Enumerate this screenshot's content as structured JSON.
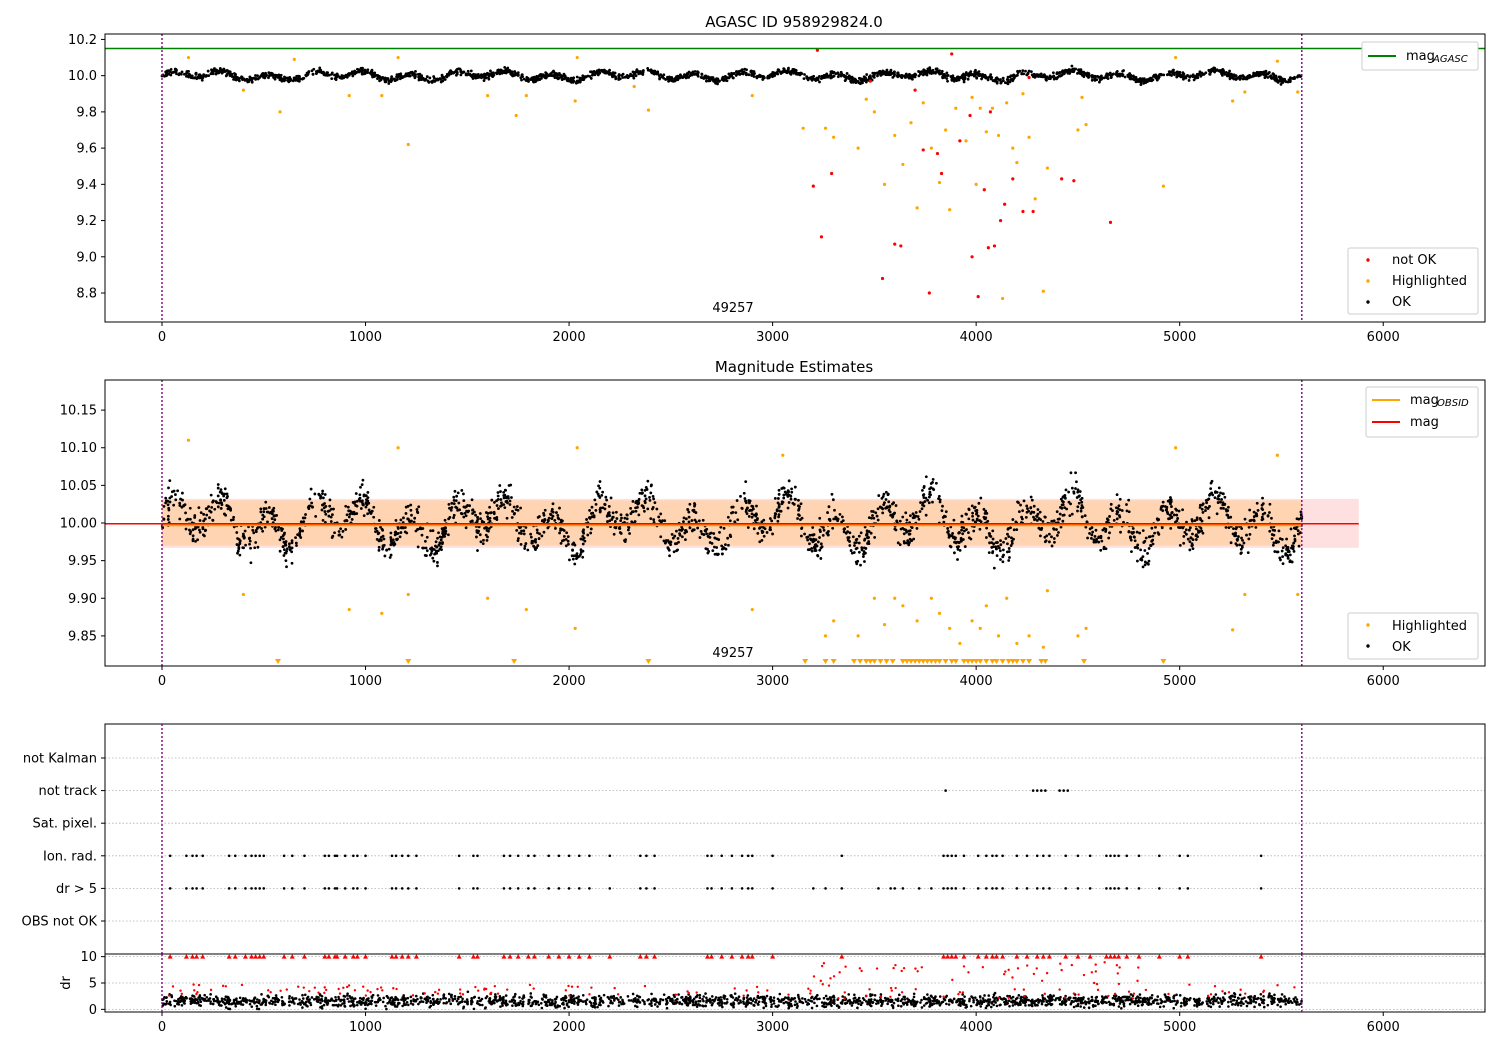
{
  "chart_data": [
    {
      "type": "scatter",
      "title": "AGASC ID 958929824.0",
      "xlim": [
        -280,
        6500
      ],
      "ylim": [
        8.64,
        10.23
      ],
      "xticks": [
        0,
        1000,
        2000,
        3000,
        4000,
        5000,
        6000
      ],
      "yticks": [
        8.8,
        9.0,
        9.2,
        9.4,
        9.6,
        9.8,
        10.0,
        10.2
      ],
      "obs_label": "49257",
      "obs_label_x": 2800,
      "obs_boundaries": [
        0,
        5600
      ],
      "agasc_mag": 10.15,
      "legend_top": [
        {
          "label": "mag",
          "sub": "AGASC",
          "color": "#008000"
        }
      ],
      "legend_bottom": [
        {
          "label": "not OK",
          "color": "#ff0000"
        },
        {
          "label": "Highlighted",
          "color": "#ffa500"
        },
        {
          "label": "OK",
          "color": "#000000"
        }
      ],
      "highlighted_points": [
        [
          130,
          10.1
        ],
        [
          400,
          9.92
        ],
        [
          580,
          9.8
        ],
        [
          650,
          10.09
        ],
        [
          920,
          9.89
        ],
        [
          1080,
          9.89
        ],
        [
          1160,
          10.1
        ],
        [
          1210,
          9.62
        ],
        [
          1600,
          9.89
        ],
        [
          1740,
          9.78
        ],
        [
          1790,
          9.89
        ],
        [
          2030,
          9.86
        ],
        [
          2040,
          10.1
        ],
        [
          2390,
          9.81
        ],
        [
          2320,
          9.94
        ],
        [
          2900,
          9.89
        ],
        [
          3150,
          9.71
        ],
        [
          3260,
          9.71
        ],
        [
          3300,
          9.66
        ],
        [
          3420,
          9.6
        ],
        [
          3460,
          9.87
        ],
        [
          3500,
          9.8
        ],
        [
          3550,
          9.4
        ],
        [
          3600,
          9.67
        ],
        [
          3640,
          9.51
        ],
        [
          3680,
          9.74
        ],
        [
          3710,
          9.27
        ],
        [
          3740,
          9.85
        ],
        [
          3780,
          9.6
        ],
        [
          3820,
          9.41
        ],
        [
          3850,
          9.7
        ],
        [
          3870,
          9.26
        ],
        [
          3900,
          9.82
        ],
        [
          3950,
          9.64
        ],
        [
          3980,
          9.88
        ],
        [
          4000,
          9.4
        ],
        [
          4020,
          9.82
        ],
        [
          4050,
          9.69
        ],
        [
          4080,
          9.82
        ],
        [
          4110,
          9.67
        ],
        [
          4130,
          8.77
        ],
        [
          4150,
          9.85
        ],
        [
          4180,
          9.6
        ],
        [
          4200,
          9.52
        ],
        [
          4230,
          9.9
        ],
        [
          4260,
          9.66
        ],
        [
          4290,
          9.32
        ],
        [
          4330,
          8.81
        ],
        [
          4350,
          9.49
        ],
        [
          4500,
          9.7
        ],
        [
          4520,
          9.88
        ],
        [
          4540,
          9.73
        ],
        [
          4920,
          9.39
        ],
        [
          4980,
          10.1
        ],
        [
          5260,
          9.86
        ],
        [
          5320,
          9.91
        ],
        [
          5480,
          10.08
        ],
        [
          5580,
          9.91
        ]
      ],
      "not_ok_points": [
        [
          3220,
          10.14
        ],
        [
          3200,
          9.39
        ],
        [
          3240,
          9.11
        ],
        [
          3290,
          9.46
        ],
        [
          3540,
          8.88
        ],
        [
          3600,
          9.07
        ],
        [
          3630,
          9.06
        ],
        [
          3740,
          9.59
        ],
        [
          3770,
          8.8
        ],
        [
          3810,
          9.57
        ],
        [
          3830,
          9.46
        ],
        [
          3880,
          10.12
        ],
        [
          3920,
          9.64
        ],
        [
          3980,
          9.0
        ],
        [
          4010,
          8.78
        ],
        [
          4040,
          9.37
        ],
        [
          4060,
          9.05
        ],
        [
          4090,
          9.06
        ],
        [
          4120,
          9.2
        ],
        [
          4140,
          9.29
        ],
        [
          4180,
          9.43
        ],
        [
          4230,
          9.25
        ],
        [
          4260,
          9.99
        ],
        [
          4280,
          9.25
        ],
        [
          4420,
          9.43
        ],
        [
          4480,
          9.42
        ],
        [
          4660,
          9.19
        ],
        [
          3970,
          9.78
        ],
        [
          4070,
          9.8
        ],
        [
          3480,
          9.97
        ],
        [
          3700,
          9.92
        ]
      ],
      "ok_baseline": 10.0,
      "ok_spread": 0.03,
      "ok_count": 2200
    },
    {
      "type": "scatter",
      "title": "Magnitude Estimates",
      "xlim": [
        -280,
        6500
      ],
      "ylim": [
        9.81,
        10.19
      ],
      "xticks": [
        0,
        1000,
        2000,
        3000,
        4000,
        5000,
        6000
      ],
      "yticks": [
        9.85,
        9.9,
        9.95,
        10.0,
        10.05,
        10.1,
        10.15
      ],
      "obs_label": "49257",
      "obs_label_x": 2800,
      "obs_boundaries": [
        0,
        5600
      ],
      "mag_obsid": 9.997,
      "mag": 9.999,
      "band_obsid": [
        9.97,
        10.03
      ],
      "band_mag": [
        9.967,
        10.032
      ],
      "band_mag_xmax": 5880,
      "legend_top": [
        {
          "label": "mag",
          "sub": "OBSID",
          "color": "#ffa500"
        },
        {
          "label": "mag",
          "sub": "",
          "color": "#ff0000"
        }
      ],
      "legend_bottom": [
        {
          "label": "Highlighted",
          "color": "#ffa500"
        },
        {
          "label": "OK",
          "color": "#000000"
        }
      ],
      "highlighted_points": [
        [
          130,
          10.11
        ],
        [
          400,
          9.905
        ],
        [
          920,
          9.885
        ],
        [
          1080,
          9.88
        ],
        [
          1160,
          10.1
        ],
        [
          1210,
          9.905
        ],
        [
          1600,
          9.9
        ],
        [
          1790,
          9.885
        ],
        [
          2030,
          9.86
        ],
        [
          2040,
          10.1
        ],
        [
          2900,
          9.885
        ],
        [
          3050,
          10.09
        ],
        [
          3260,
          9.85
        ],
        [
          3300,
          9.87
        ],
        [
          3420,
          9.85
        ],
        [
          3500,
          9.9
        ],
        [
          3550,
          9.865
        ],
        [
          3600,
          9.9
        ],
        [
          3640,
          9.89
        ],
        [
          3710,
          9.87
        ],
        [
          3780,
          9.9
        ],
        [
          3820,
          9.88
        ],
        [
          3870,
          9.86
        ],
        [
          3920,
          9.84
        ],
        [
          3980,
          9.87
        ],
        [
          4020,
          9.86
        ],
        [
          4050,
          9.89
        ],
        [
          4110,
          9.85
        ],
        [
          4150,
          9.9
        ],
        [
          4200,
          9.84
        ],
        [
          4260,
          9.85
        ],
        [
          4330,
          9.835
        ],
        [
          4350,
          9.91
        ],
        [
          4500,
          9.85
        ],
        [
          4540,
          9.86
        ],
        [
          4980,
          10.1
        ],
        [
          5260,
          9.858
        ],
        [
          5320,
          9.905
        ],
        [
          5480,
          10.09
        ],
        [
          5580,
          9.905
        ]
      ],
      "below_range_x": [
        570,
        1210,
        1730,
        2390,
        3160,
        3260,
        3300,
        3400,
        3430,
        3460,
        3480,
        3500,
        3530,
        3560,
        3590,
        3640,
        3660,
        3680,
        3700,
        3720,
        3740,
        3760,
        3780,
        3800,
        3820,
        3850,
        3880,
        3900,
        3940,
        3960,
        3980,
        4000,
        4020,
        4050,
        4080,
        4100,
        4130,
        4160,
        4180,
        4200,
        4230,
        4260,
        4320,
        4340,
        4530,
        4920
      ],
      "ok_baseline": 10.0,
      "ok_spread": 0.03,
      "ok_count": 2200
    },
    {
      "type": "scatter",
      "title": "",
      "xlim": [
        -280,
        6500
      ],
      "categories": [
        "not Kalman",
        "not track",
        "Sat. pixel.",
        "Ion. rad.",
        "dr > 5",
        "OBS not OK"
      ],
      "obs_boundaries": [
        0,
        5600
      ],
      "not_track_x": [
        3850,
        4280,
        4300,
        4320,
        4340,
        4410,
        4430,
        4450
      ],
      "ion_rad_x": [
        40,
        120,
        150,
        170,
        200,
        330,
        360,
        410,
        440,
        460,
        480,
        500,
        600,
        640,
        700,
        800,
        820,
        850,
        860,
        900,
        940,
        960,
        1000,
        1130,
        1150,
        1180,
        1210,
        1250,
        1460,
        1530,
        1550,
        1680,
        1710,
        1750,
        1800,
        1830,
        1900,
        1950,
        2000,
        2050,
        2100,
        2200,
        2350,
        2380,
        2420,
        2680,
        2700,
        2750,
        2800,
        2850,
        2880,
        2900,
        3000,
        3340,
        3840,
        3860,
        3880,
        3900,
        3940,
        4010,
        4050,
        4080,
        4100,
        4130,
        4200,
        4250,
        4300,
        4330,
        4360,
        4440,
        4500,
        4560,
        4640,
        4660,
        4680,
        4700,
        4740,
        4800,
        4900,
        5000,
        5040,
        5400
      ],
      "dr_gt5_x": [
        40,
        120,
        150,
        170,
        200,
        330,
        360,
        410,
        440,
        460,
        480,
        500,
        600,
        640,
        700,
        800,
        820,
        850,
        860,
        900,
        940,
        960,
        1000,
        1130,
        1150,
        1180,
        1210,
        1250,
        1460,
        1530,
        1550,
        1680,
        1710,
        1750,
        1800,
        1830,
        1900,
        1950,
        2000,
        2050,
        2100,
        2200,
        2350,
        2380,
        2420,
        2680,
        2700,
        2750,
        2800,
        2850,
        2880,
        2900,
        3000,
        3200,
        3260,
        3340,
        3520,
        3580,
        3600,
        3640,
        3720,
        3780,
        3840,
        3860,
        3880,
        3900,
        3940,
        4010,
        4050,
        4080,
        4100,
        4130,
        4200,
        4250,
        4300,
        4330,
        4360,
        4440,
        4500,
        4560,
        4640,
        4660,
        4680,
        4700,
        4740,
        4800,
        4900,
        5000,
        5040,
        5400
      ]
    },
    {
      "type": "scatter",
      "title": "",
      "ylabel": "dr",
      "xlim": [
        -280,
        6500
      ],
      "ylim": [
        -0.5,
        10.5
      ],
      "yticks": [
        0,
        5,
        10
      ],
      "xticks": [
        0,
        1000,
        2000,
        3000,
        4000,
        5000,
        6000
      ],
      "obs_boundaries": [
        0,
        5600
      ],
      "ok_count": 2000,
      "ok_mean": 1.6
    }
  ]
}
